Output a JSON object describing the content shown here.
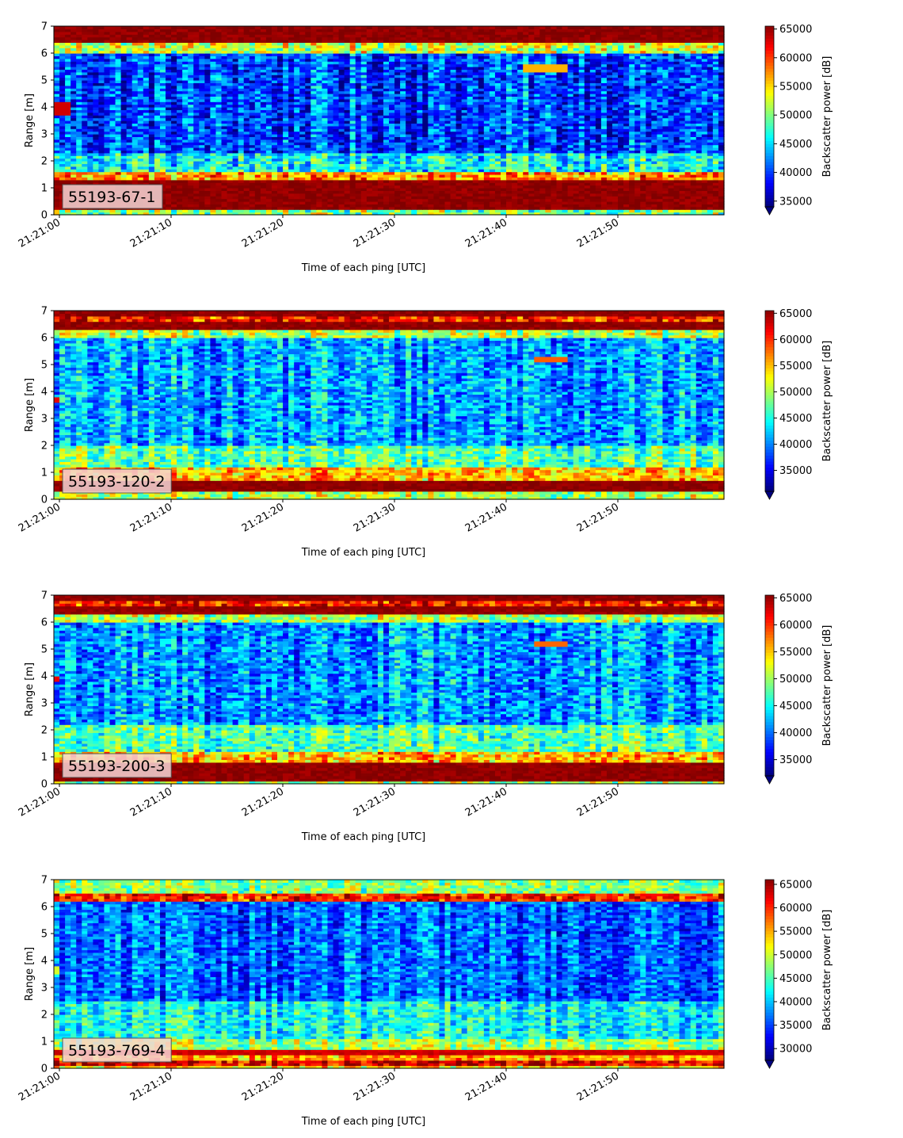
{
  "colormap": "jet",
  "chart_data": [
    {
      "type": "heatmap",
      "title": "",
      "annotation": "55193-67-1",
      "xlabel": "Time of each ping [UTC]",
      "ylabel": "Range [m]",
      "colorbar_label": "Backscatter power [dB]",
      "xlim": [
        "21:21:00",
        "21:21:59"
      ],
      "ylim": [
        0,
        7
      ],
      "xtick_labels": [
        "21:21:00",
        "21:21:10",
        "21:21:20",
        "21:21:30",
        "21:21:40",
        "21:21:50"
      ],
      "ytick_labels": [
        "0",
        "1",
        "2",
        "3",
        "4",
        "5",
        "6",
        "7"
      ],
      "clim": [
        34000,
        65500
      ],
      "colorbar_ticks": [
        35000,
        40000,
        45000,
        50000,
        55000,
        60000,
        65000
      ],
      "colorbar_extend": "min",
      "bands": [
        {
          "range_m": [
            0.0,
            0.25
          ],
          "level": 50000
        },
        {
          "range_m": [
            0.25,
            1.3
          ],
          "level": 65000
        },
        {
          "range_m": [
            1.3,
            1.6
          ],
          "level": 57000
        },
        {
          "range_m": [
            1.6,
            2.3
          ],
          "level": 46000
        },
        {
          "range_m": [
            2.3,
            6.0
          ],
          "level": 40000
        },
        {
          "range_m": [
            6.0,
            6.4
          ],
          "level": 52000
        },
        {
          "range_m": [
            6.4,
            7.0
          ],
          "level": 65000
        }
      ],
      "features": [
        {
          "time_s": [
            0,
            1.5
          ],
          "range_m": [
            3.7,
            4.2
          ],
          "level": 63000
        },
        {
          "time_s": [
            42,
            46
          ],
          "range_m": [
            5.3,
            5.6
          ],
          "level": 56000
        }
      ]
    },
    {
      "type": "heatmap",
      "title": "",
      "annotation": "55193-120-2",
      "xlabel": "Time of each ping [UTC]",
      "ylabel": "Range [m]",
      "colorbar_label": "Backscatter power [dB]",
      "xlim": [
        "21:21:00",
        "21:21:59"
      ],
      "ylim": [
        0,
        7
      ],
      "xtick_labels": [
        "21:21:00",
        "21:21:10",
        "21:21:20",
        "21:21:30",
        "21:21:40",
        "21:21:50"
      ],
      "ytick_labels": [
        "0",
        "1",
        "2",
        "3",
        "4",
        "5",
        "6",
        "7"
      ],
      "clim": [
        31000,
        65500
      ],
      "colorbar_ticks": [
        35000,
        40000,
        45000,
        50000,
        55000,
        60000,
        65000
      ],
      "colorbar_extend": "min",
      "bands": [
        {
          "range_m": [
            0.0,
            0.3
          ],
          "level": 50000
        },
        {
          "range_m": [
            0.3,
            0.75
          ],
          "level": 65000
        },
        {
          "range_m": [
            0.75,
            1.2
          ],
          "level": 55000
        },
        {
          "range_m": [
            1.2,
            2.0
          ],
          "level": 47000
        },
        {
          "range_m": [
            2.0,
            6.0
          ],
          "level": 41000
        },
        {
          "range_m": [
            6.0,
            6.3
          ],
          "level": 50000
        },
        {
          "range_m": [
            6.3,
            6.6
          ],
          "level": 65000
        },
        {
          "range_m": [
            6.6,
            6.8
          ],
          "level": 60000
        },
        {
          "range_m": [
            6.8,
            7.0
          ],
          "level": 65000
        }
      ],
      "features": [
        {
          "time_s": [
            0,
            0.7
          ],
          "range_m": [
            3.6,
            3.8
          ],
          "level": 62000
        },
        {
          "time_s": [
            43,
            46
          ],
          "range_m": [
            5.1,
            5.3
          ],
          "level": 58000
        }
      ]
    },
    {
      "type": "heatmap",
      "title": "",
      "annotation": "55193-200-3",
      "xlabel": "Time of each ping [UTC]",
      "ylabel": "Range [m]",
      "colorbar_label": "Backscatter power [dB]",
      "xlim": [
        "21:21:00",
        "21:21:59"
      ],
      "ylim": [
        0,
        7
      ],
      "xtick_labels": [
        "21:21:00",
        "21:21:10",
        "21:21:20",
        "21:21:30",
        "21:21:40",
        "21:21:50"
      ],
      "ytick_labels": [
        "0",
        "1",
        "2",
        "3",
        "4",
        "5",
        "6",
        "7"
      ],
      "clim": [
        32000,
        65500
      ],
      "colorbar_ticks": [
        35000,
        40000,
        45000,
        50000,
        55000,
        60000,
        65000
      ],
      "colorbar_extend": "min",
      "bands": [
        {
          "range_m": [
            0.0,
            0.1
          ],
          "level": 50000
        },
        {
          "range_m": [
            0.1,
            0.8
          ],
          "level": 65000
        },
        {
          "range_m": [
            0.8,
            1.2
          ],
          "level": 55000
        },
        {
          "range_m": [
            1.2,
            2.2
          ],
          "level": 47000
        },
        {
          "range_m": [
            2.2,
            6.0
          ],
          "level": 41000
        },
        {
          "range_m": [
            6.0,
            6.3
          ],
          "level": 50000
        },
        {
          "range_m": [
            6.3,
            6.6
          ],
          "level": 65000
        },
        {
          "range_m": [
            6.6,
            6.8
          ],
          "level": 60000
        },
        {
          "range_m": [
            6.8,
            7.0
          ],
          "level": 65000
        }
      ],
      "features": [
        {
          "time_s": [
            0,
            0.7
          ],
          "range_m": [
            3.8,
            4.0
          ],
          "level": 62000
        },
        {
          "time_s": [
            43,
            46
          ],
          "range_m": [
            5.1,
            5.3
          ],
          "level": 58000
        }
      ]
    },
    {
      "type": "heatmap",
      "title": "",
      "annotation": "55193-769-4",
      "xlabel": "Time of each ping [UTC]",
      "ylabel": "Range [m]",
      "colorbar_label": "Backscatter power [dB]",
      "xlim": [
        "21:21:00",
        "21:21:59"
      ],
      "ylim": [
        0,
        7
      ],
      "xtick_labels": [
        "21:21:00",
        "21:21:10",
        "21:21:20",
        "21:21:30",
        "21:21:40",
        "21:21:50"
      ],
      "ytick_labels": [
        "0",
        "1",
        "2",
        "3",
        "4",
        "5",
        "6",
        "7"
      ],
      "clim": [
        27500,
        66000
      ],
      "colorbar_ticks": [
        30000,
        35000,
        40000,
        45000,
        50000,
        55000,
        60000,
        65000
      ],
      "colorbar_extend": "min",
      "bands": [
        {
          "range_m": [
            0.0,
            0.1
          ],
          "level": 52000
        },
        {
          "range_m": [
            0.1,
            0.3
          ],
          "level": 62000
        },
        {
          "range_m": [
            0.3,
            0.45
          ],
          "level": 55000
        },
        {
          "range_m": [
            0.45,
            0.7
          ],
          "level": 63000
        },
        {
          "range_m": [
            0.7,
            1.1
          ],
          "level": 48000
        },
        {
          "range_m": [
            1.1,
            2.5
          ],
          "level": 42000
        },
        {
          "range_m": [
            2.5,
            6.2
          ],
          "level": 36000
        },
        {
          "range_m": [
            6.2,
            6.5
          ],
          "level": 60000
        },
        {
          "range_m": [
            6.5,
            7.0
          ],
          "level": 47000
        }
      ],
      "features": [
        {
          "time_s": [
            0,
            0.7
          ],
          "range_m": [
            3.5,
            3.8
          ],
          "level": 50000
        }
      ]
    }
  ]
}
